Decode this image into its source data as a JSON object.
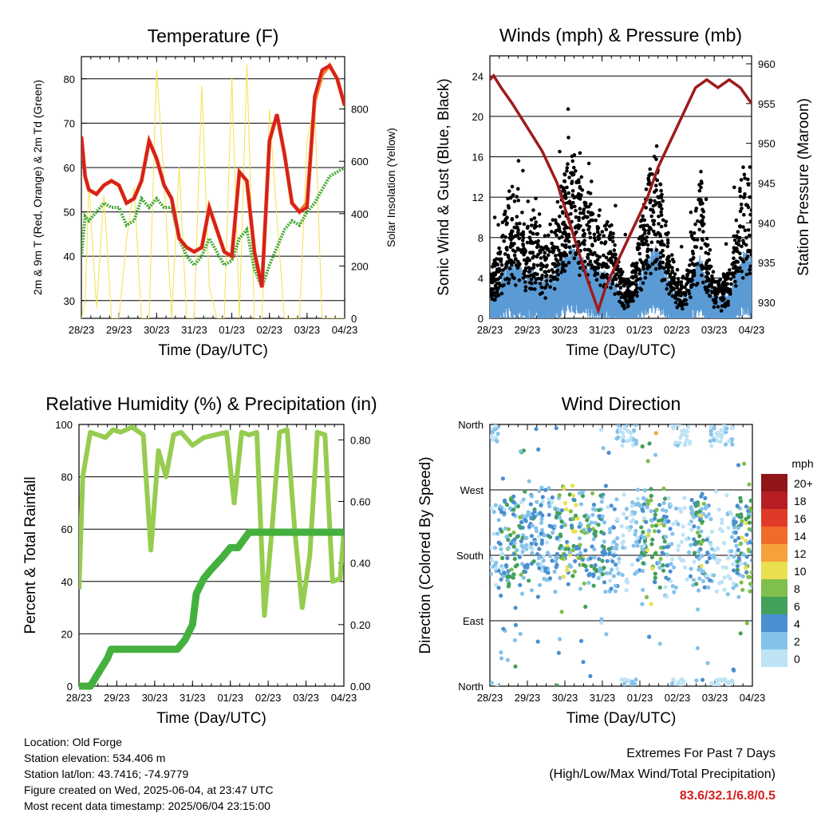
{
  "x_ticks": [
    "28/23",
    "29/23",
    "30/23",
    "31/23",
    "01/23",
    "02/23",
    "03/23",
    "04/23"
  ],
  "xlabel": "Time (Day/UTC)",
  "chart_data": [
    {
      "type": "line",
      "title": "Temperature (F)",
      "ylabel": "2m & 9m T (Red, Orange) & 2m Td (Green)",
      "ylabel_right": "Solar Insolation (Yellow)",
      "ylim": [
        26,
        85
      ],
      "yticks": [
        30,
        40,
        50,
        60,
        70,
        80
      ],
      "ylim_right": [
        0,
        1000
      ],
      "yticks_right": [
        0,
        200,
        400,
        600,
        800
      ],
      "x": [
        0,
        0.1,
        0.2,
        0.4,
        0.6,
        0.8,
        1,
        1.2,
        1.4,
        1.6,
        1.8,
        2,
        2.2,
        2.4,
        2.6,
        2.8,
        3,
        3.2,
        3.4,
        3.6,
        3.8,
        4,
        4.2,
        4.4,
        4.6,
        4.8,
        5,
        5.2,
        5.4,
        5.6,
        5.8,
        6,
        6.2,
        6.4,
        6.6,
        6.8,
        7
      ],
      "series": [
        {
          "color": "#d62020",
          "values": [
            67,
            58,
            55,
            54,
            56,
            57,
            56,
            52,
            53,
            57,
            66,
            62,
            56,
            53,
            44,
            42,
            41,
            42,
            51,
            46,
            41,
            40,
            59,
            57,
            41,
            33,
            66,
            72,
            63,
            52,
            50,
            51,
            76,
            82,
            83,
            80,
            74
          ]
        },
        {
          "color": "#f48024",
          "values": [
            67,
            58,
            55,
            54,
            56,
            57,
            56,
            52,
            53,
            57,
            66,
            62,
            56,
            53,
            44,
            42,
            41,
            42,
            51,
            46,
            41,
            40,
            59,
            57,
            41,
            33,
            66,
            72,
            63,
            52,
            50,
            52,
            75,
            81,
            83,
            80,
            74
          ]
        },
        {
          "color": "#44aa33",
          "values": [
            40,
            49,
            48,
            50,
            52,
            51,
            51,
            47,
            48,
            53,
            51,
            53,
            51,
            51,
            44,
            40,
            38,
            40,
            44,
            41,
            38,
            39,
            44,
            46,
            37,
            33,
            38,
            42,
            46,
            48,
            47,
            50,
            52,
            55,
            58,
            59,
            60
          ]
        },
        {
          "color": "#f5e050",
          "values": [
            0,
            60,
            520,
            40,
            470,
            0,
            0,
            300,
            500,
            0,
            0,
            950,
            530,
            0,
            580,
            0,
            0,
            890,
            120,
            0,
            0,
            920,
            0,
            970,
            0,
            0,
            800,
            380,
            0,
            0,
            0,
            680,
            820,
            0,
            0,
            0,
            0
          ]
        }
      ]
    },
    {
      "type": "scatter",
      "title": "Winds (mph) & Pressure (mb)",
      "ylabel": "Sonic Wind & Gust (Blue, Black)",
      "ylabel_right": "Station Pressure (Maroon)",
      "ylim": [
        0,
        26
      ],
      "yticks": [
        0,
        4,
        8,
        12,
        16,
        20,
        24
      ],
      "ylim_right": [
        928,
        961
      ],
      "yticks_right": [
        930,
        935,
        940,
        945,
        950,
        955,
        960
      ],
      "activity": [
        0.3,
        0.4,
        0.8,
        1,
        0.9,
        0.6,
        0.8,
        0.5,
        0.6,
        0.7,
        1.1,
        1.3,
        1.2,
        1,
        0.9,
        0.8,
        0.7,
        0.6,
        0.3,
        0.2,
        0.4,
        0.8,
        1.2,
        1.3,
        0.8,
        0.4,
        0.2,
        0.2,
        0.7,
        1.1,
        0.5,
        0.2,
        0.2,
        0.3,
        0.8,
        1.2,
        1.0
      ],
      "series": [
        {
          "name": "Station Pressure",
          "color": "#9e1b1b",
          "x": [
            0,
            0.1,
            0.3,
            0.6,
            1,
            1.4,
            1.8,
            2.2,
            2.6,
            2.9,
            3.1,
            3.4,
            3.8,
            4.2,
            4.5,
            4.8,
            5.0,
            5.2,
            5.5,
            5.8,
            6.1,
            6.4,
            6.7,
            7
          ],
          "values": [
            958,
            958.5,
            957,
            955,
            952,
            949,
            945,
            939,
            933,
            929,
            932,
            935,
            939,
            943,
            947,
            950,
            952,
            954,
            957,
            958,
            957,
            958,
            957,
            955
          ]
        },
        {
          "name": "Gust",
          "color": "#000000"
        },
        {
          "name": "Wind",
          "color": "#5b9bd5"
        }
      ]
    },
    {
      "type": "line",
      "title": "Relative Humidity (%) & Precipitation (in)",
      "ylabel": "Percent & Total Rainfall",
      "ylim": [
        0,
        100
      ],
      "yticks": [
        0,
        20,
        40,
        60,
        80,
        100
      ],
      "ylim_right": [
        0,
        0.85
      ],
      "yticks_right": [
        "0.00",
        "0.20",
        "0.40",
        "0.60",
        "0.80"
      ],
      "series": [
        {
          "name": "RH",
          "color": "#96cc50",
          "x": [
            0,
            0.1,
            0.3,
            0.5,
            0.7,
            0.9,
            1.1,
            1.4,
            1.7,
            1.9,
            2.1,
            2.3,
            2.5,
            2.7,
            3.0,
            3.3,
            3.6,
            3.9,
            4.1,
            4.3,
            4.5,
            4.7,
            4.9,
            5.1,
            5.3,
            5.5,
            5.7,
            5.9,
            6.1,
            6.3,
            6.5,
            6.7,
            6.9,
            7
          ],
          "values": [
            37,
            80,
            97,
            96,
            95,
            98,
            97,
            99,
            96,
            52,
            90,
            80,
            96,
            97,
            92,
            95,
            96,
            97,
            70,
            97,
            96,
            97,
            27,
            60,
            97,
            98,
            60,
            30,
            50,
            97,
            96,
            40,
            41,
            59
          ]
        },
        {
          "name": "Precipitation",
          "color": "#44b03e",
          "x": [
            0,
            0.3,
            0.45,
            0.6,
            0.75,
            0.85,
            1.0,
            1.4,
            2.0,
            2.6,
            2.8,
            3.0,
            3.1,
            3.3,
            3.5,
            3.8,
            4.0,
            4.2,
            4.5,
            5.0,
            6.0,
            7.0
          ],
          "values": [
            0,
            0,
            0.03,
            0.06,
            0.09,
            0.12,
            0.12,
            0.12,
            0.12,
            0.12,
            0.15,
            0.2,
            0.3,
            0.35,
            0.38,
            0.42,
            0.45,
            0.45,
            0.5,
            0.5,
            0.5,
            0.5
          ]
        }
      ]
    },
    {
      "type": "scatter",
      "title": "Wind Direction",
      "ylabel": "Direction (Colored By Speed)",
      "ylim": [
        0,
        360
      ],
      "yticks": [
        "North",
        "East",
        "South",
        "West",
        "North"
      ],
      "colorbar": {
        "title": "mph",
        "labels": [
          "0",
          "2",
          "4",
          "6",
          "8",
          "10",
          "12",
          "14",
          "16",
          "18",
          "20+"
        ],
        "colors": [
          "#bde3f5",
          "#84c2ea",
          "#4a8fcf",
          "#41a05a",
          "#7fbf4c",
          "#e9e04e",
          "#f7a13a",
          "#f06a28",
          "#df3a27",
          "#b61e24",
          "#8f1518"
        ]
      }
    }
  ],
  "info": [
    "Location: Old Forge",
    "Station elevation: 534.406 m",
    "Station lat/lon: 43.7416; -74.9779",
    "Figure created on Wed, 2025-06-04, at 23:47 UTC",
    "Most recent data timestamp: 2025/06/04 23:15:00"
  ],
  "extremes": {
    "line1": "Extremes For Past 7 Days",
    "line2": "(High/Low/Max Wind/Total Precipitation)",
    "value": "83.6/32.1/6.8/0.5",
    "value_color": "#d62020"
  }
}
